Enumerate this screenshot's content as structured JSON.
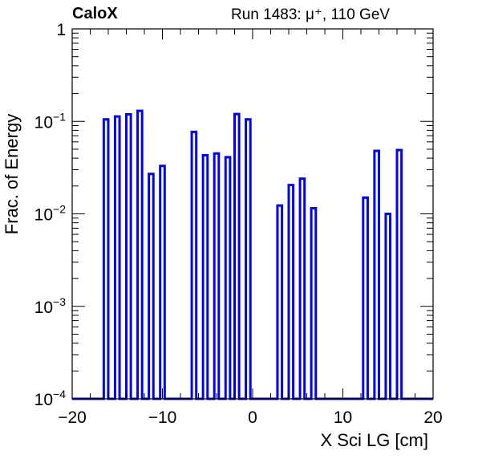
{
  "header": {
    "experiment": "CaloX",
    "run_info": "Run 1483:   μ⁺, 110 GeV"
  },
  "chart_data": {
    "type": "bar",
    "title": "",
    "xlabel": "X Sci LG [cm]",
    "ylabel": "Frac. of Energy",
    "xlim": [
      -20,
      20
    ],
    "ylim": [
      0.0001,
      1
    ],
    "yscale": "log",
    "x_ticks": [
      "−20",
      "−10",
      "0",
      "10",
      "20"
    ],
    "y_ticks": [
      {
        "base": "10",
        "exp": "−4",
        "value": 0.0001
      },
      {
        "base": "10",
        "exp": "−3",
        "value": 0.001
      },
      {
        "base": "10",
        "exp": "−2",
        "value": 0.01
      },
      {
        "base": "10",
        "exp": "−1",
        "value": 0.1
      },
      {
        "base": "1",
        "exp": "",
        "value": 1
      }
    ],
    "bin_width": 0.5,
    "series": [
      {
        "color": "#0000ee",
        "bins": [
          {
            "x": -16.25,
            "y": 0.105
          },
          {
            "x": -15.0,
            "y": 0.113
          },
          {
            "x": -13.75,
            "y": 0.119
          },
          {
            "x": -12.5,
            "y": 0.13
          },
          {
            "x": -11.25,
            "y": 0.027
          },
          {
            "x": -10.0,
            "y": 0.033
          },
          {
            "x": -6.5,
            "y": 0.077
          },
          {
            "x": -5.25,
            "y": 0.043
          },
          {
            "x": -4.0,
            "y": 0.045
          },
          {
            "x": -2.75,
            "y": 0.041
          },
          {
            "x": -1.75,
            "y": 0.12
          },
          {
            "x": -0.5,
            "y": 0.105
          },
          {
            "x": 3.0,
            "y": 0.0123
          },
          {
            "x": 4.25,
            "y": 0.0205
          },
          {
            "x": 5.5,
            "y": 0.024
          },
          {
            "x": 6.75,
            "y": 0.0115
          },
          {
            "x": 12.5,
            "y": 0.015
          },
          {
            "x": 13.75,
            "y": 0.048
          },
          {
            "x": 15.0,
            "y": 0.01
          },
          {
            "x": 16.25,
            "y": 0.049
          }
        ]
      }
    ]
  }
}
